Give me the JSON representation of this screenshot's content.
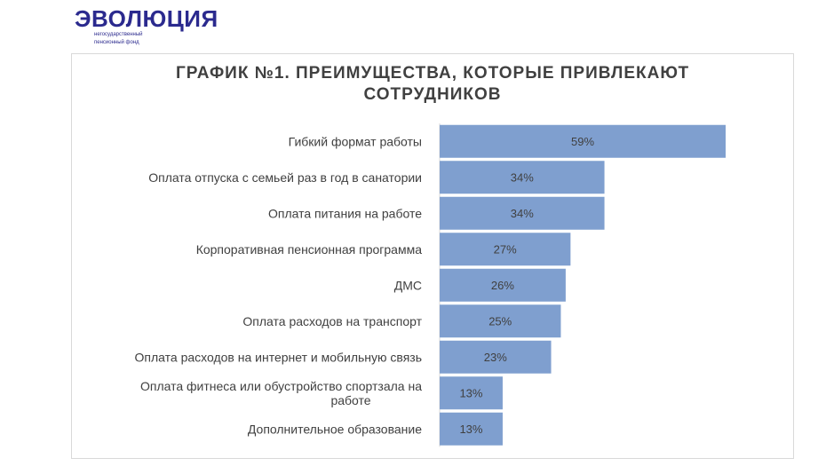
{
  "logo": {
    "word": "ЭВОЛЮЦИЯ",
    "sub_line1": "негосударственный",
    "sub_line2": "пенсионный фонд"
  },
  "chart_data": {
    "type": "bar",
    "orientation": "horizontal",
    "title_line1": "ГРАФИК №1. ПРЕИМУЩЕСТВА, КОТОРЫЕ ПРИВЛЕКАЮТ",
    "title_line2": "СОТРУДНИКОВ",
    "categories": [
      [
        "Гибкий формат работы"
      ],
      [
        "Оплата отпуска с семьей раз в год в санатории"
      ],
      [
        "Оплата питания на работе"
      ],
      [
        "Корпоративная пенсионная программа"
      ],
      [
        "ДМС"
      ],
      [
        "Оплата расходов на транспорт"
      ],
      [
        "Оплата расходов на интернет и мобильную связь"
      ],
      [
        "Оплата фитнеса или обустройство спортзала на",
        "работе"
      ],
      [
        "Дополнительное образование"
      ]
    ],
    "values": [
      59,
      34,
      34,
      27,
      26,
      25,
      23,
      13,
      13
    ],
    "value_suffix": "%",
    "xlim": [
      0,
      60
    ],
    "bar_color": "#7f9fcf"
  }
}
